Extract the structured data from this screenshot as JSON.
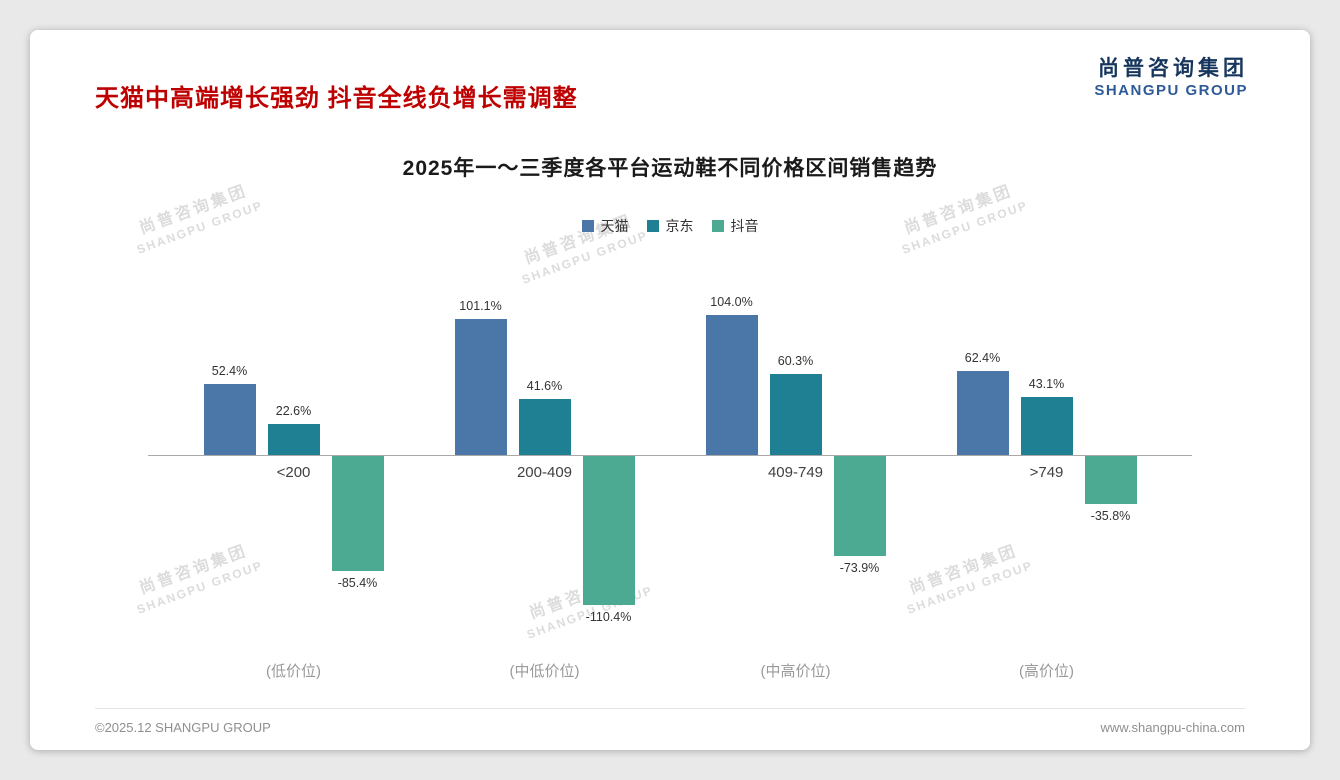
{
  "page": {
    "title": "天猫中高端增长强劲 抖音全线负增长需调整",
    "logo": {
      "cn": "尚普咨询集团",
      "en": "SHANGPU GROUP"
    },
    "watermark": {
      "cn": "尚普咨询集团",
      "en": "SHANGPU GROUP"
    },
    "footer": {
      "left": "©2025.12 SHANGPU GROUP",
      "right": "www.shangpu-china.com"
    }
  },
  "chart_data": {
    "type": "bar",
    "title": "2025年一～三季度各平台运动鞋不同价格区间销售趋势",
    "categories": [
      "<200",
      "200-409",
      "409-749",
      ">749"
    ],
    "category_sublabels": [
      "(低价位)",
      "(中低价位)",
      "(中高价位)",
      "(高价位)"
    ],
    "series": [
      {
        "name": "天猫",
        "color": "#4a77a8",
        "values": [
          52.4,
          101.1,
          104.0,
          62.4
        ]
      },
      {
        "name": "京东",
        "color": "#1f7f93",
        "values": [
          22.6,
          41.6,
          60.3,
          43.1
        ]
      },
      {
        "name": "抖音",
        "color": "#4caa93",
        "values": [
          -85.4,
          -110.4,
          -73.9,
          -35.8
        ]
      }
    ],
    "value_suffix": "%",
    "ylim": [
      -130,
      130
    ],
    "legend_position": "top",
    "grid": false
  }
}
